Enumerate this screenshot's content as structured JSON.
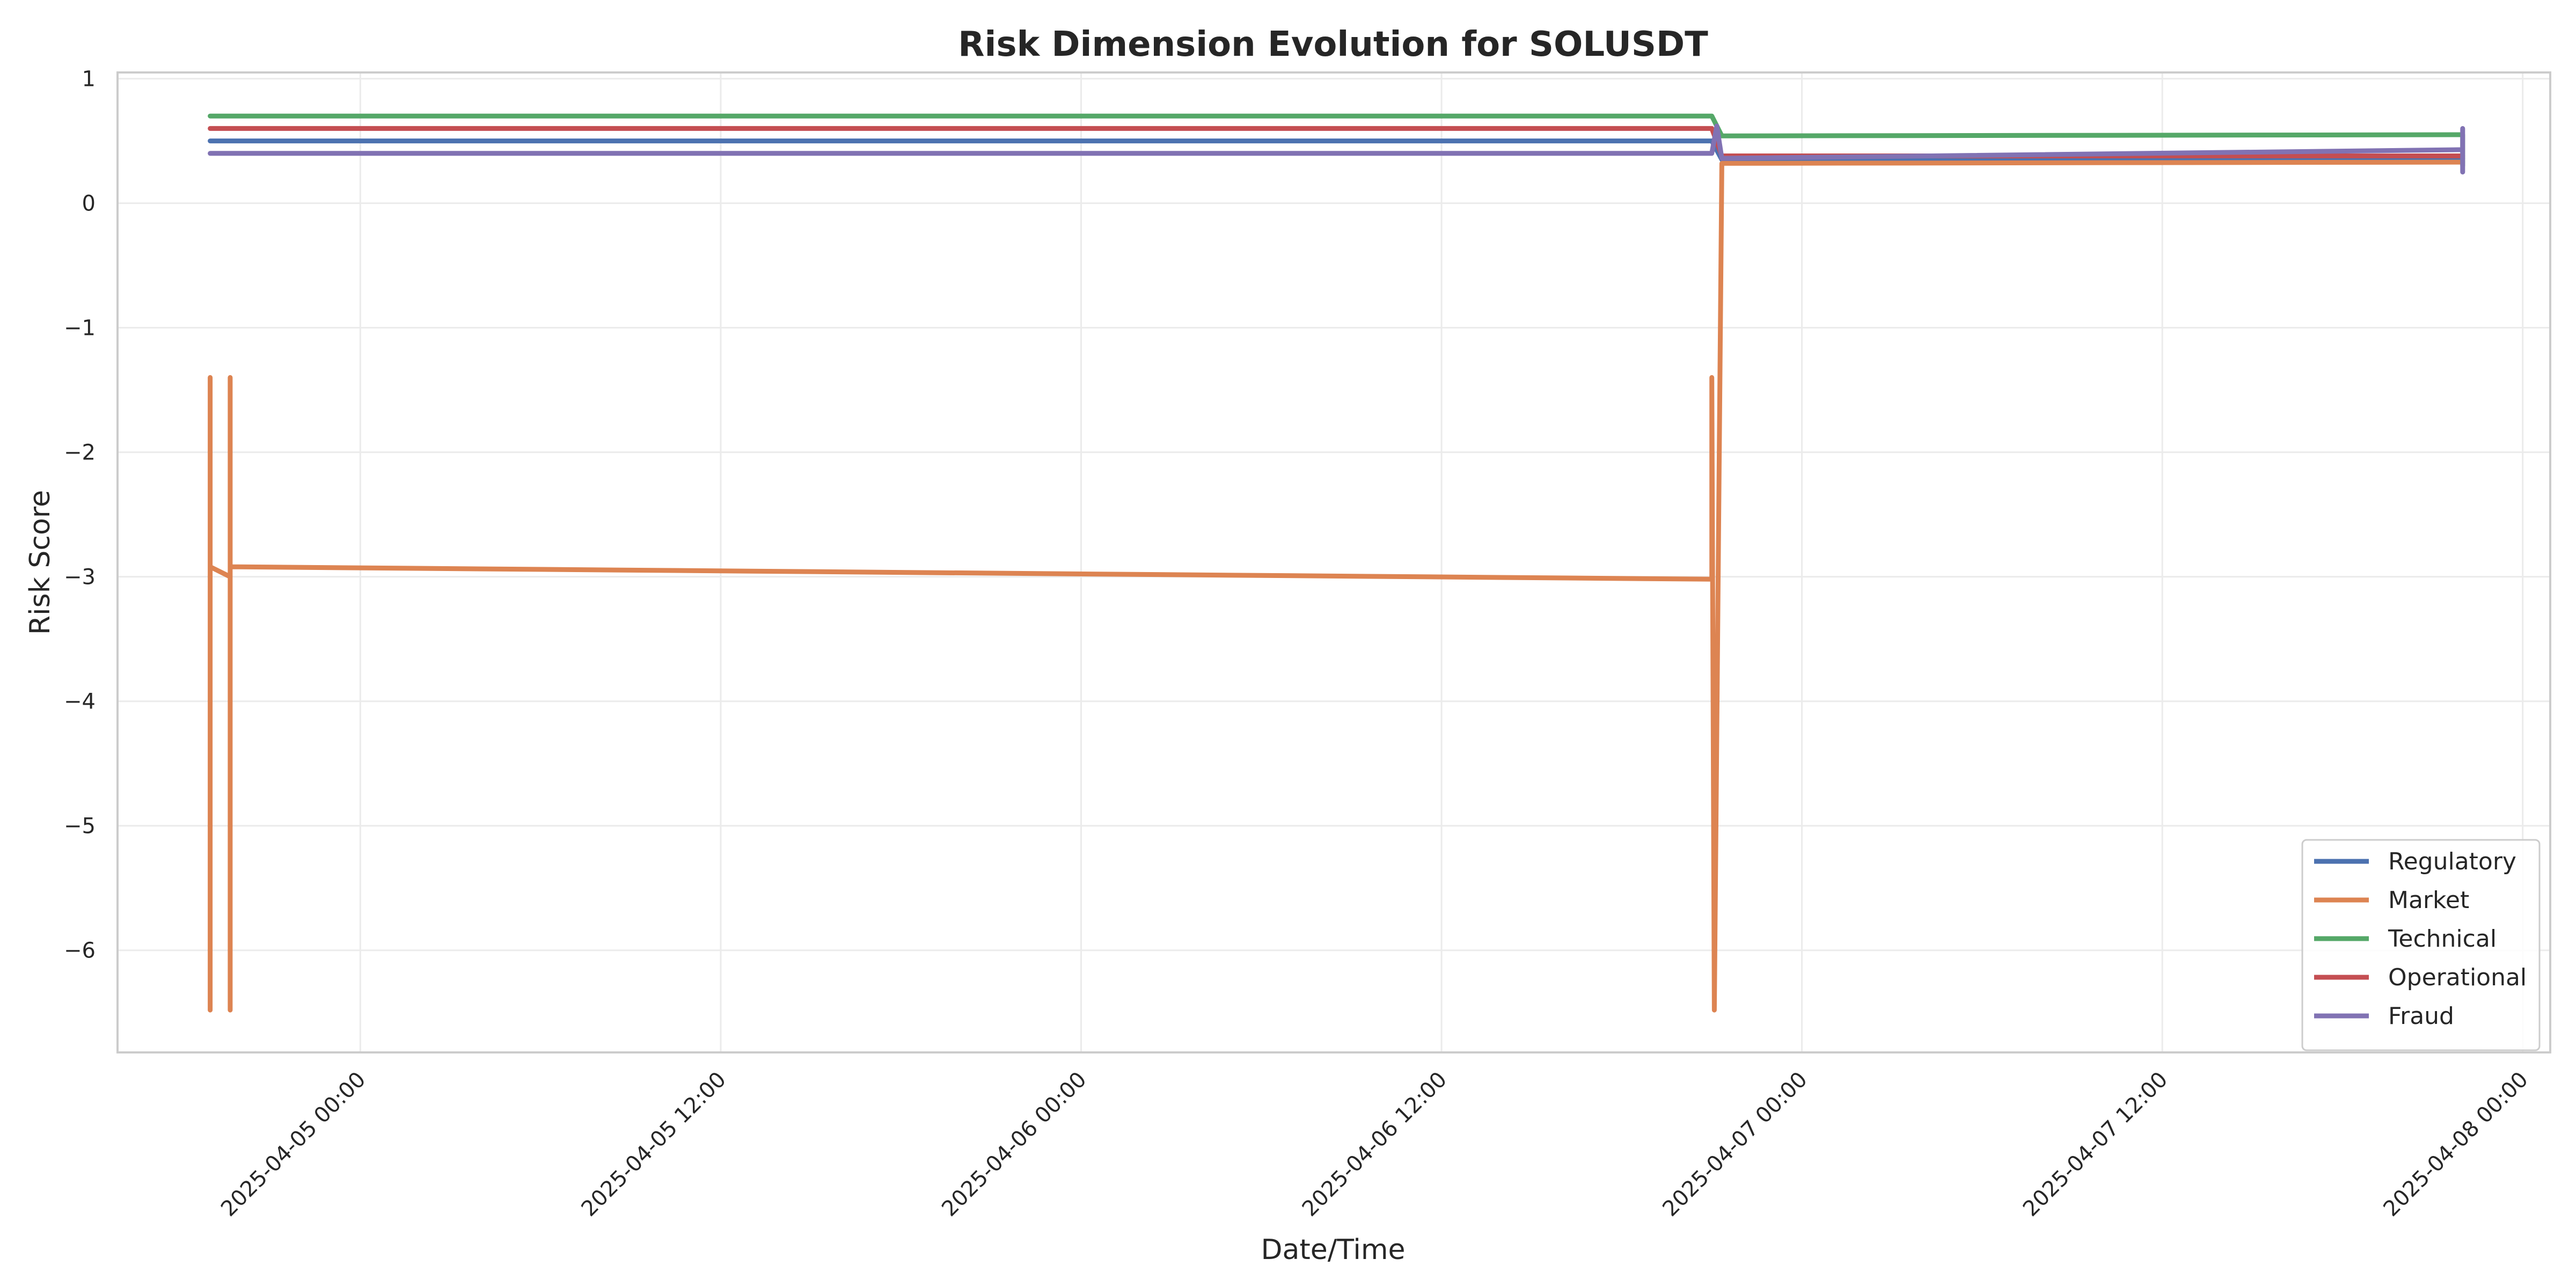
{
  "chart_data": {
    "type": "line",
    "title": "Risk Dimension Evolution for SOLUSDT",
    "xlabel": "Date/Time",
    "ylabel": "Risk Score",
    "xlim": [
      "2025-04-04 15:55",
      "2025-04-08 00:55"
    ],
    "ylim": [
      -6.82,
      1.05
    ],
    "x_ticks": [
      "2025-04-05 00:00",
      "2025-04-05 12:00",
      "2025-04-06 00:00",
      "2025-04-06 12:00",
      "2025-04-07 00:00",
      "2025-04-07 12:00",
      "2025-04-08 00:00"
    ],
    "y_ticks": [
      1,
      0,
      -1,
      -2,
      -3,
      -4,
      -5,
      -6
    ],
    "y_tick_labels": [
      "1",
      "0",
      "−1",
      "−2",
      "−3",
      "−4",
      "−5",
      "−6"
    ],
    "grid": true,
    "legend_position": "lower-right",
    "series": [
      {
        "name": "Regulatory",
        "color": "#4c72b0",
        "points": [
          [
            "2025-04-04 19:00",
            0.5
          ],
          [
            "2025-04-06 21:00",
            0.5
          ],
          [
            "2025-04-06 21:20",
            0.35
          ],
          [
            "2025-04-07 22:00",
            0.36
          ]
        ]
      },
      {
        "name": "Market",
        "color": "#dd8452",
        "points": [
          [
            "2025-04-04 19:00",
            -1.4
          ],
          [
            "2025-04-04 19:00",
            -6.48
          ],
          [
            "2025-04-04 19:00",
            -2.92
          ],
          [
            "2025-04-04 19:40",
            -3.0
          ],
          [
            "2025-04-04 19:40",
            -1.4
          ],
          [
            "2025-04-04 19:40",
            -6.48
          ],
          [
            "2025-04-04 19:40",
            -2.92
          ],
          [
            "2025-04-06 21:00",
            -3.02
          ],
          [
            "2025-04-06 21:00",
            -1.4
          ],
          [
            "2025-04-06 21:05",
            -6.48
          ],
          [
            "2025-04-06 21:20",
            0.32
          ],
          [
            "2025-04-07 22:00",
            0.33
          ]
        ]
      },
      {
        "name": "Technical",
        "color": "#55a868",
        "points": [
          [
            "2025-04-04 19:00",
            0.7
          ],
          [
            "2025-04-06 21:00",
            0.7
          ],
          [
            "2025-04-06 21:20",
            0.54
          ],
          [
            "2025-04-07 22:00",
            0.55
          ],
          [
            "2025-04-07 22:00",
            0.3
          ]
        ]
      },
      {
        "name": "Operational",
        "color": "#c44e52",
        "points": [
          [
            "2025-04-04 19:00",
            0.6
          ],
          [
            "2025-04-06 21:00",
            0.6
          ],
          [
            "2025-04-06 21:20",
            0.38
          ],
          [
            "2025-04-07 22:00",
            0.38
          ]
        ]
      },
      {
        "name": "Fraud",
        "color": "#8172b3",
        "points": [
          [
            "2025-04-04 19:00",
            0.4
          ],
          [
            "2025-04-06 21:00",
            0.4
          ],
          [
            "2025-04-06 21:10",
            0.62
          ],
          [
            "2025-04-06 21:20",
            0.36
          ],
          [
            "2025-04-07 22:00",
            0.43
          ],
          [
            "2025-04-07 22:00",
            0.25
          ],
          [
            "2025-04-07 22:00",
            0.6
          ]
        ]
      }
    ]
  }
}
